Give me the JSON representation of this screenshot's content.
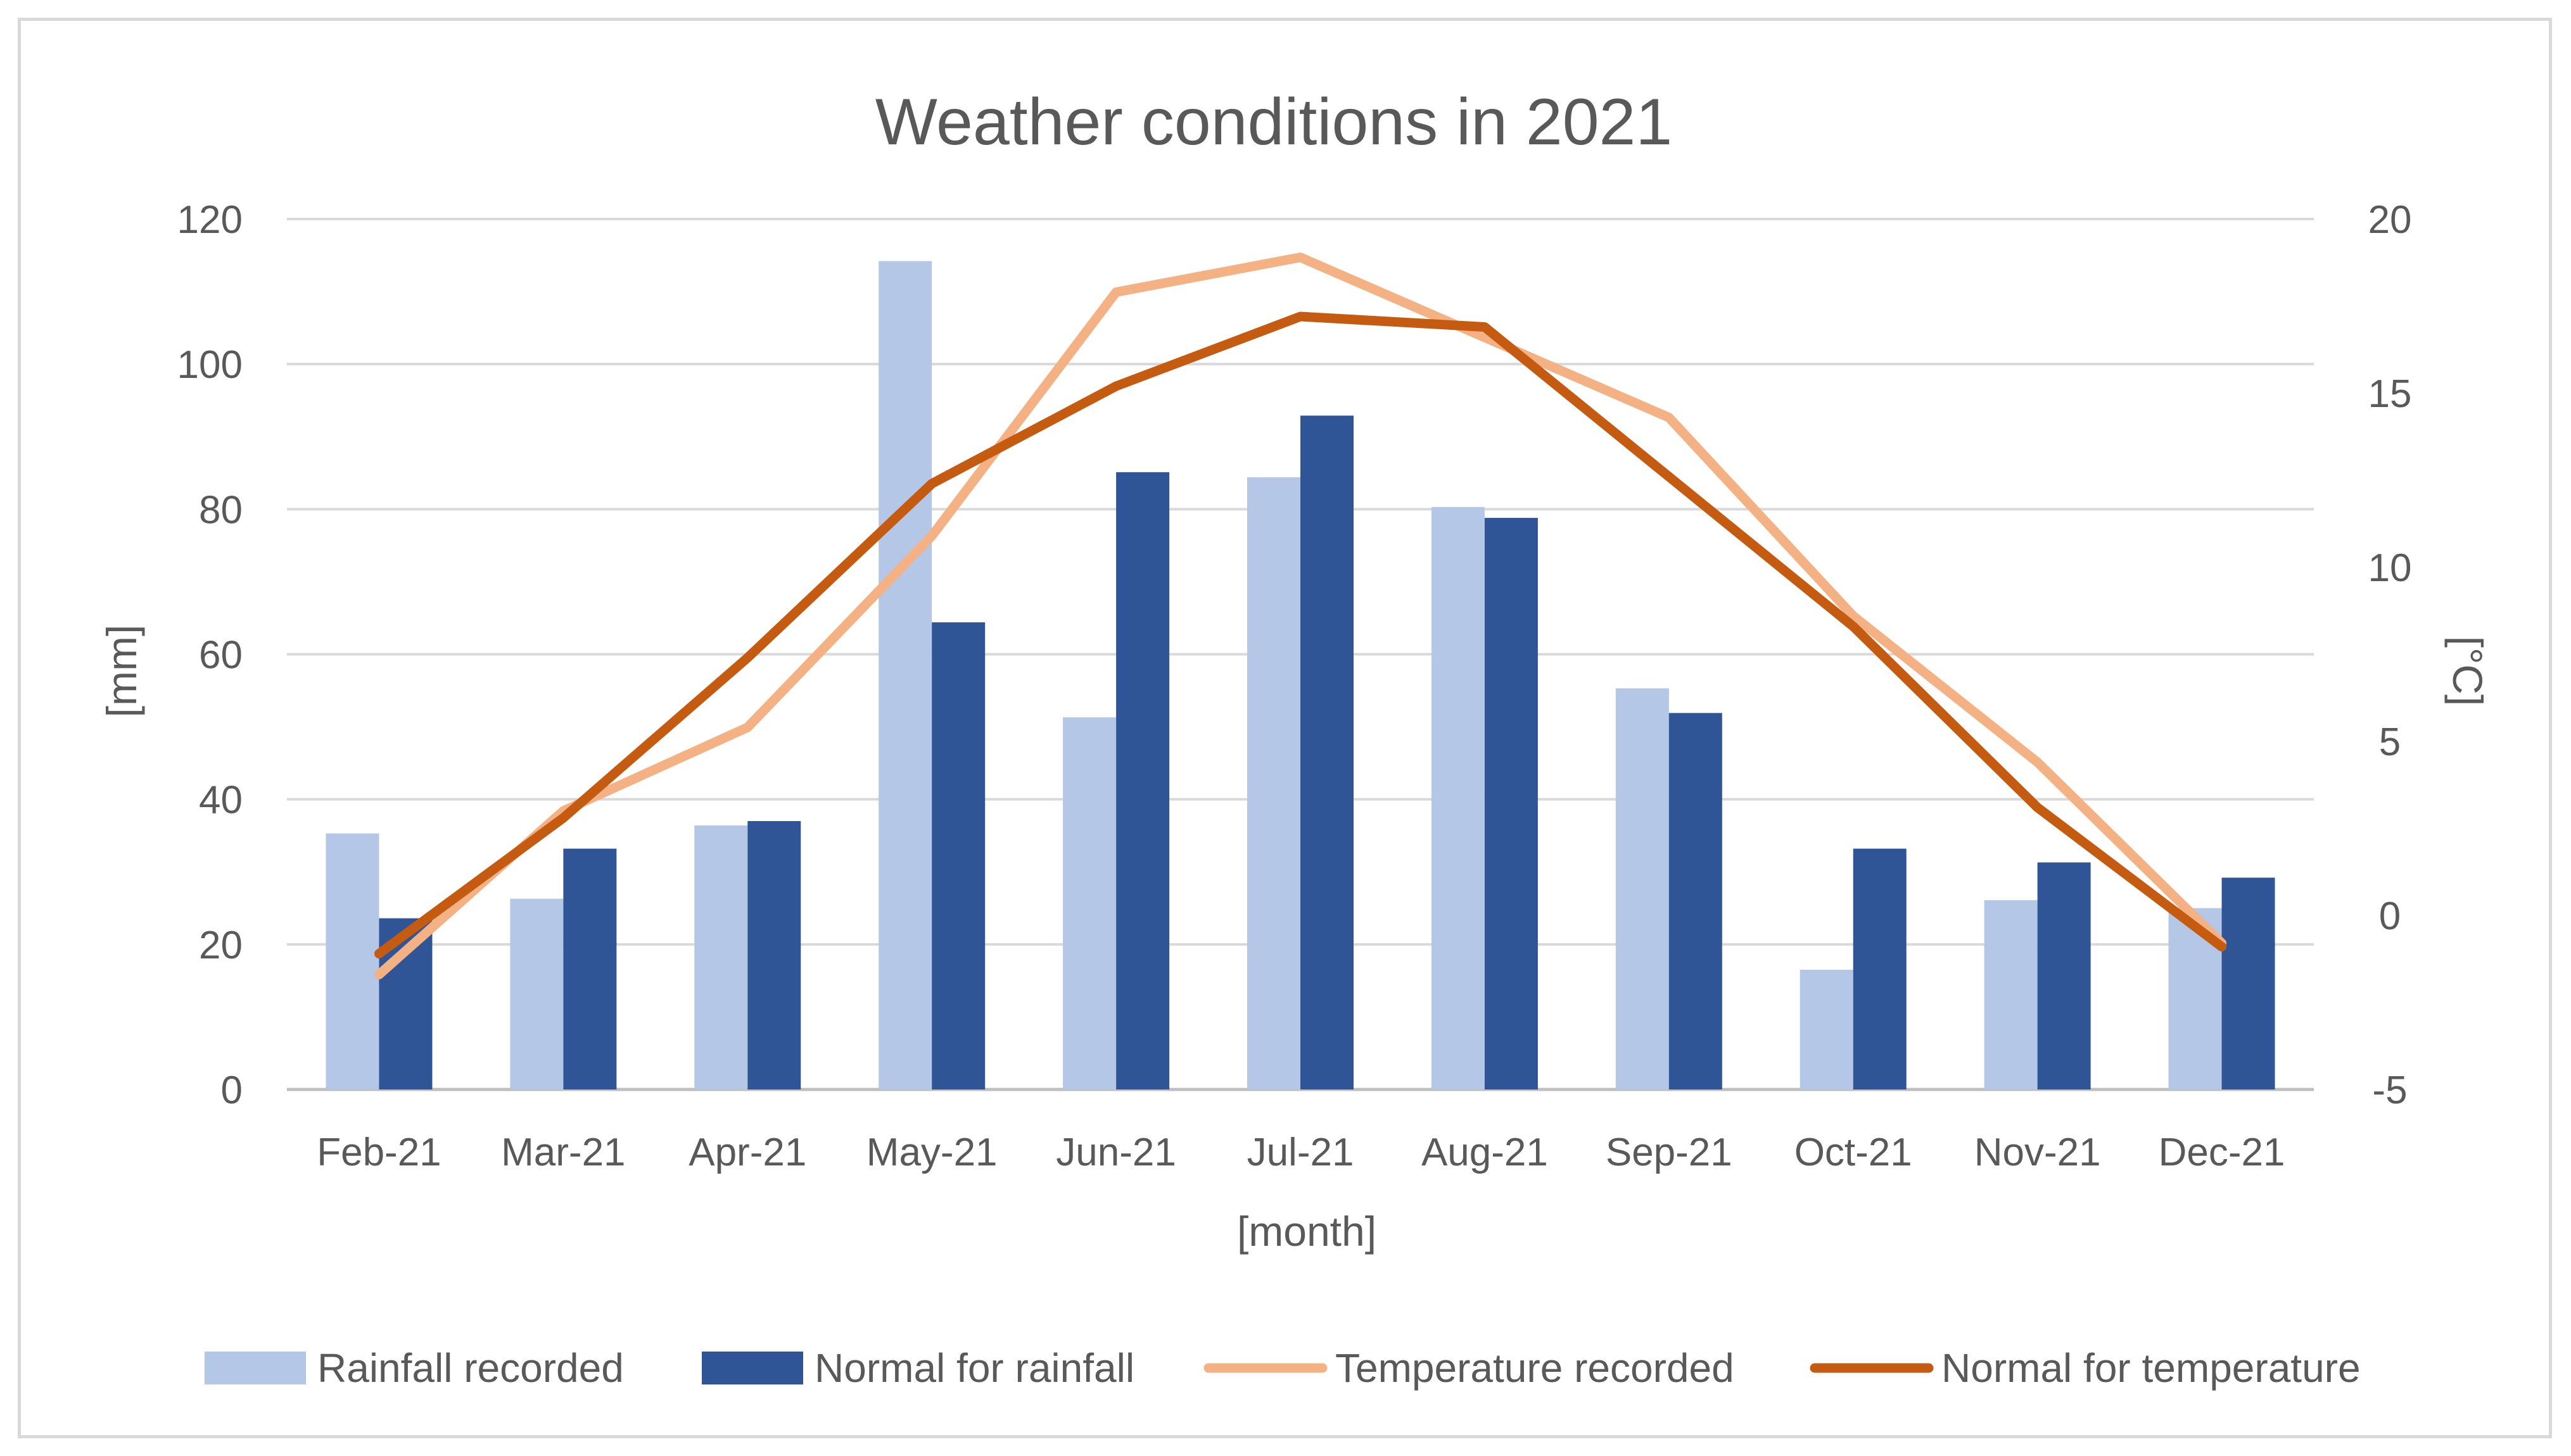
{
  "chart_data": {
    "type": "bar",
    "title": "Weather conditions in 2021",
    "xlabel": "[month]",
    "ylabel": "[mm]",
    "y2label": "[°C]",
    "ylim": [
      0,
      120
    ],
    "y2lim": [
      -5,
      20
    ],
    "yticks": [
      "0",
      "20",
      "40",
      "60",
      "80",
      "100",
      "120"
    ],
    "y2ticks": [
      "-5",
      "0",
      "5",
      "10",
      "15",
      "20"
    ],
    "grid": true,
    "legend_position": "bottom",
    "categories": [
      "Feb-21",
      "Mar-21",
      "Apr-21",
      "May-21",
      "Jun-21",
      "Jul-21",
      "Aug-21",
      "Sep-21",
      "Oct-21",
      "Nov-21",
      "Dec-21"
    ],
    "series": [
      {
        "name": "Rainfall recorded",
        "kind": "bar",
        "axis": "left",
        "color": "#b4c7e7",
        "values": [
          35.3,
          26.3,
          36.4,
          114.2,
          51.3,
          84.4,
          80.3,
          55.3,
          16.5,
          26.1,
          25.0
        ]
      },
      {
        "name": "Normal for rainfall",
        "kind": "bar",
        "axis": "left",
        "color": "#2f5597",
        "values": [
          23.6,
          33.2,
          37.0,
          64.4,
          85.1,
          92.9,
          78.8,
          51.9,
          33.2,
          31.3,
          29.2
        ]
      },
      {
        "name": "Temperature recorded",
        "kind": "line",
        "axis": "right",
        "color": "#f4b183",
        "values": [
          -1.7,
          3.0,
          5.4,
          10.9,
          17.9,
          18.9,
          16.6,
          14.3,
          8.6,
          4.4,
          -0.8
        ]
      },
      {
        "name": "Normal for temperature",
        "kind": "line",
        "axis": "right",
        "color": "#c55a11",
        "values": [
          -1.1,
          2.8,
          7.4,
          12.4,
          15.2,
          17.2,
          16.9,
          12.6,
          8.3,
          3.1,
          -0.9
        ]
      }
    ]
  }
}
